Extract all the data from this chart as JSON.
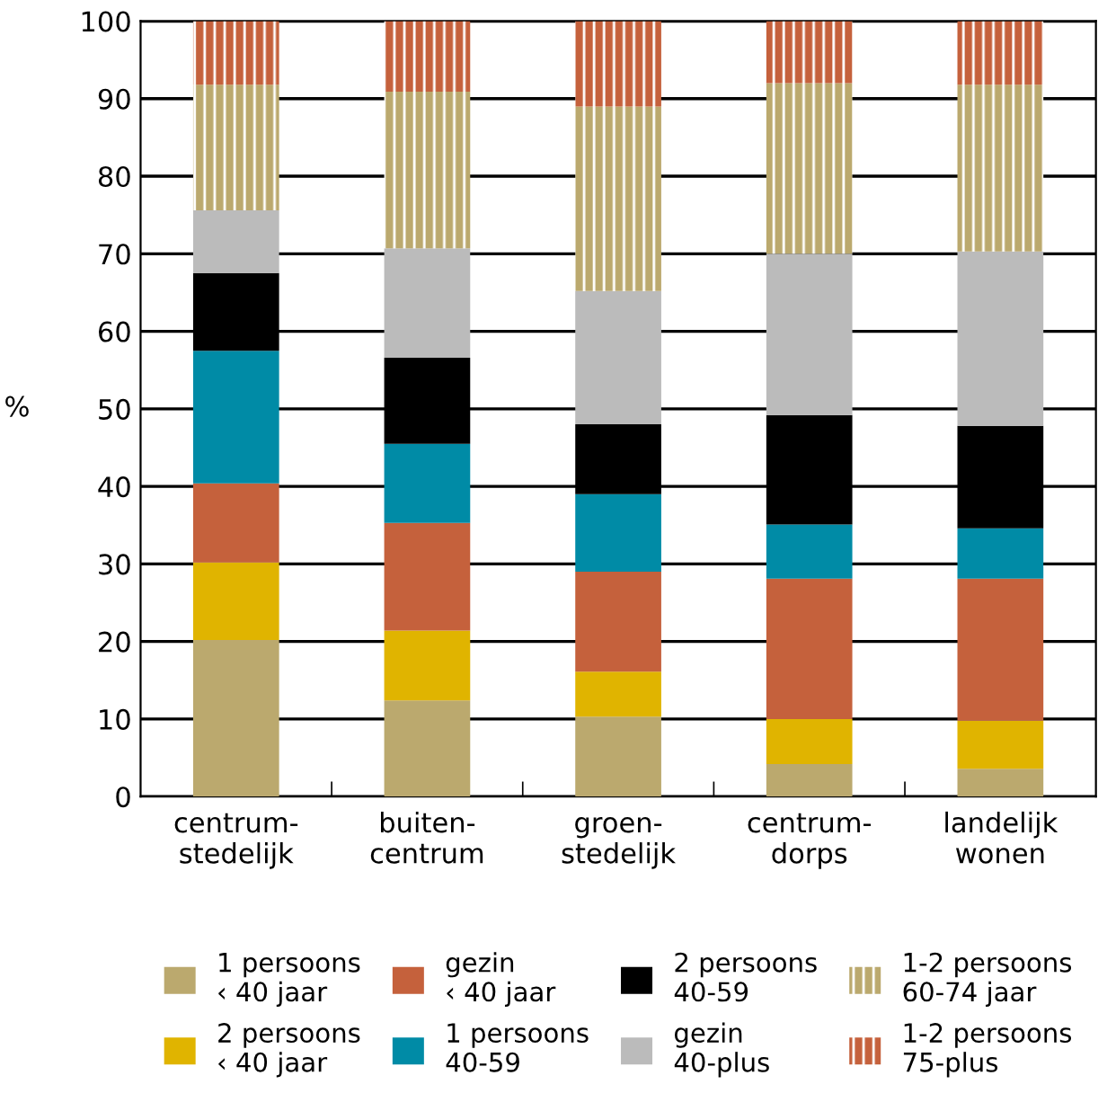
{
  "chart_data": {
    "type": "bar",
    "stacked": true,
    "ylabel": "%",
    "categories": [
      "centrum-\nstedelijk",
      "buiten-\ncentrum",
      "groen-\nstedelijk",
      "centrum-\ndorps",
      "landelijk\nwonen"
    ],
    "series": [
      {
        "name": "1 persoons\n‹ 40 jaar",
        "color": "#bba96e",
        "values": [
          20.2,
          12.4,
          10.3,
          4.2,
          3.6
        ]
      },
      {
        "name": "2 persoons\n‹ 40 jaar",
        "color": "#e0b400",
        "values": [
          10.0,
          9.0,
          5.8,
          5.8,
          6.2
        ]
      },
      {
        "name": "gezin\n‹ 40 jaar",
        "color": "#c5613c",
        "values": [
          10.2,
          13.9,
          12.9,
          18.1,
          18.3
        ]
      },
      {
        "name": "1 persoons\n40-59",
        "color": "#008ba6",
        "values": [
          17.1,
          10.2,
          10.0,
          7.0,
          6.5
        ]
      },
      {
        "name": "2 persoons\n40-59",
        "color": "#000000",
        "values": [
          10.0,
          11.1,
          9.0,
          14.1,
          13.2
        ]
      },
      {
        "name": "gezin\n40-plus",
        "color": "#bbbbbb",
        "values": [
          8.1,
          14.1,
          17.2,
          20.8,
          22.5
        ]
      },
      {
        "name": "1-2 persoons\n60-74 jaar",
        "color": "#bba96e",
        "values": [
          16.2,
          20.2,
          23.8,
          22.0,
          21.5
        ]
      },
      {
        "name": "1-2 persoons\n75-plus",
        "color": "#c5613c",
        "values": [
          8.2,
          9.1,
          11.0,
          8.0,
          8.2
        ]
      }
    ],
    "ylim": [
      0,
      100
    ],
    "yticks": [
      0,
      10,
      20,
      30,
      40,
      50,
      60,
      70,
      80,
      90,
      100
    ],
    "grid": "y",
    "legend": "bottom"
  }
}
